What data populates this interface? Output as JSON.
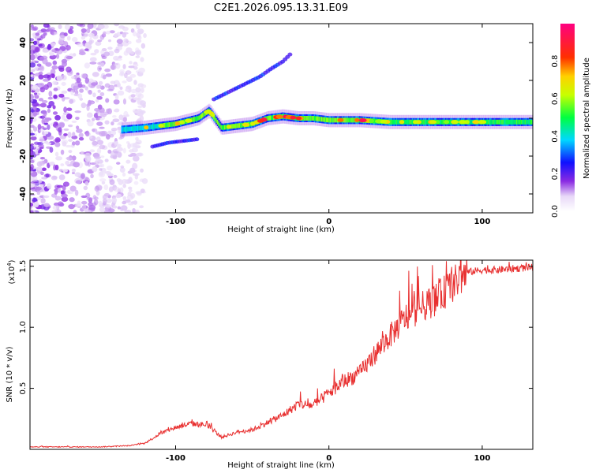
{
  "chart_data": [
    {
      "type": "heatmap",
      "title": "C2E1.2026.095.13.31.E09",
      "xlabel": "Height of straight line (km)",
      "ylabel": "Frequency (Hz)",
      "xlim": [
        -195,
        133
      ],
      "ylim": [
        -50,
        50
      ],
      "xticks": [
        -100,
        0,
        100
      ],
      "xtick_labels": [
        "-100",
        "0",
        "100"
      ],
      "yticks": [
        -40,
        -20,
        0,
        20,
        40
      ],
      "ytick_labels": [
        "-40",
        "-20",
        "0",
        "20",
        "40"
      ],
      "colorbar": {
        "label": "Normalized spectral amplitude",
        "range": [
          0,
          1
        ],
        "ticks": [
          0.0,
          0.2,
          0.4,
          0.6,
          0.8
        ],
        "tick_labels": [
          "0.0",
          "0.2",
          "0.4",
          "0.6",
          "0.8"
        ]
      },
      "series": [
        {
          "name": "main trace",
          "x": [
            -135,
            -120,
            -100,
            -85,
            -78,
            -70,
            -60,
            -50,
            -40,
            -30,
            -20,
            -10,
            0,
            20,
            40,
            60,
            80,
            100,
            133
          ],
          "y": [
            -6,
            -5,
            -3,
            0,
            4,
            -5,
            -4,
            -3,
            0,
            1,
            0,
            0,
            -1,
            -1,
            -2,
            -2,
            -2,
            -2,
            -2
          ]
        },
        {
          "name": "upper branch",
          "x": [
            -75,
            -65,
            -55,
            -45,
            -38,
            -30,
            -25
          ],
          "y": [
            10,
            14,
            18,
            22,
            26,
            30,
            34
          ]
        },
        {
          "name": "lower branch",
          "x": [
            -115,
            -105,
            -95,
            -85
          ],
          "y": [
            -15,
            -13,
            -12,
            -11
          ]
        }
      ]
    },
    {
      "type": "line",
      "xlabel": "Height of straight line (km)",
      "ylabel": "SNR (10 * v/v)",
      "y_multiplier_label": "(x10",
      "y_multiplier_exp": "4",
      "xlim": [
        -195,
        133
      ],
      "ylim": [
        0,
        15500
      ],
      "xticks": [
        -100,
        0,
        100
      ],
      "xtick_labels": [
        "-100",
        "0",
        "100"
      ],
      "yticks": [
        5000,
        10000,
        15000
      ],
      "ytick_labels": [
        "0.5",
        "1.0",
        "1.5"
      ],
      "color": "#e83030",
      "series": [
        {
          "name": "SNR",
          "x": [
            -195,
            -150,
            -130,
            -120,
            -110,
            -100,
            -90,
            -80,
            -70,
            -60,
            -50,
            -40,
            -30,
            -20,
            -10,
            0,
            10,
            20,
            30,
            40,
            50,
            60,
            70,
            80,
            90,
            100,
            110,
            120,
            133
          ],
          "y": [
            200,
            200,
            300,
            500,
            1300,
            1800,
            2100,
            2000,
            1000,
            1400,
            1600,
            2200,
            2800,
            3700,
            3600,
            4600,
            5600,
            6200,
            7800,
            9300,
            10800,
            11600,
            12300,
            13400,
            14500,
            14700,
            14700,
            14800,
            14900
          ]
        }
      ]
    }
  ]
}
